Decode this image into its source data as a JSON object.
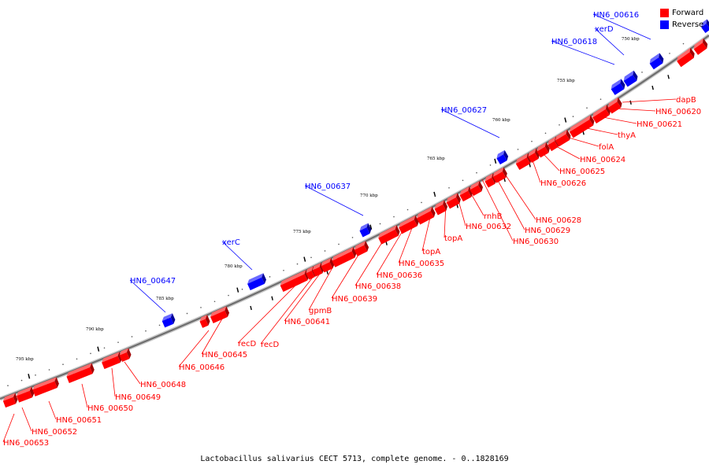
{
  "legend": {
    "forward_label": "Forward",
    "reverse_label": "Reverse",
    "forward_color": "#ff0000",
    "reverse_color": "#0000ff"
  },
  "caption": "Lactobacillus salivarius CECT 5713, complete genome. - 0..1828169",
  "scale_labels": [
    "750 kbp",
    "755 kbp",
    "760 kbp",
    "765 kbp",
    "770 kbp",
    "775 kbp",
    "780 kbp",
    "785 kbp",
    "790 kbp",
    "795 kbp"
  ],
  "reverse_genes": [
    "HN6_00616",
    "xerD",
    "HN6_00618",
    "HN6_00627",
    "HN6_00637",
    "xerC",
    "HN6_00647"
  ],
  "forward_genes": [
    "dapB",
    "HN6_00620",
    "HN6_00621",
    "thyA",
    "folA",
    "HN6_00624",
    "HN6_00625",
    "HN6_00626",
    "HN6_00628",
    "HN6_00629",
    "HN6_00630",
    "rnhB",
    "HN6_00632",
    "topA",
    "topA",
    "HN6_00635",
    "HN6_00636",
    "HN6_00638",
    "HN6_00639",
    "gpmB",
    "HN6_00641",
    "recD",
    "recD",
    "HN6_00645",
    "HN6_00646",
    "HN6_00648",
    "HN6_00649",
    "HN6_00650",
    "HN6_00651",
    "HN6_00652",
    "HN6_00653"
  ]
}
